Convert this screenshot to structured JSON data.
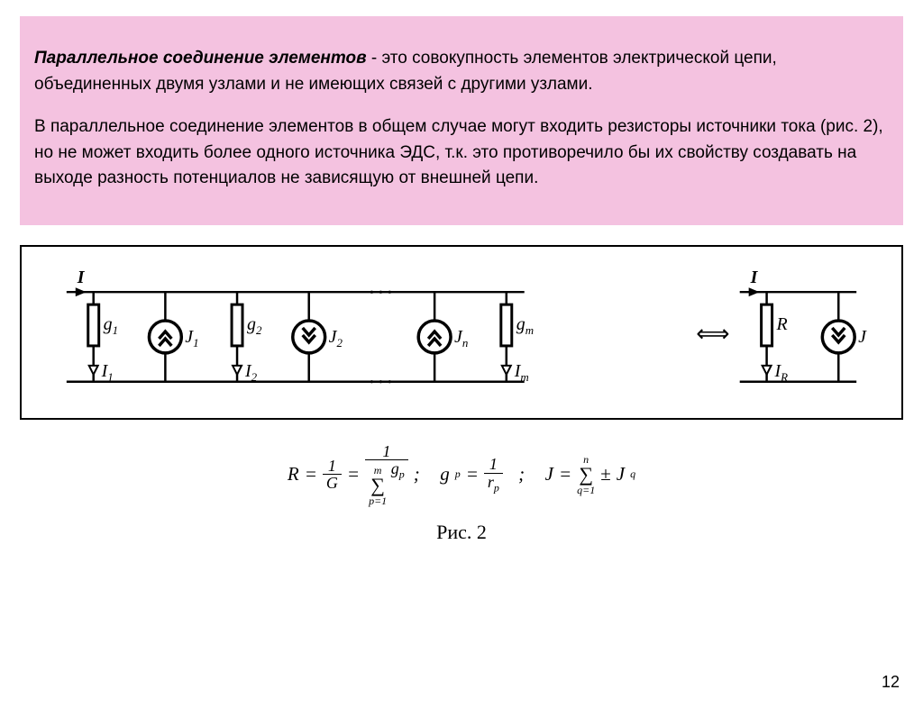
{
  "textBlock": {
    "para1_bold": "Параллельное соединение элементов",
    "para1_rest": " - это совокупность элементов электрической цепи, объединенных двумя узлами и не имеющих связей с другими узлами.",
    "para2": "В параллельное соединение элементов в общем случае могут входить резисторы источники тока (рис. 2), но не может входить более одного источника ЭДС, т.к. это противоречило бы их свойству создавать на выходе разность потенциалов не зависящую от внешней цепи."
  },
  "circuit": {
    "topLabel": "I",
    "topLabelRight": "I",
    "branches": [
      {
        "type": "resistor",
        "label": "g",
        "sub": "1",
        "ilabel": "I",
        "isub": "1"
      },
      {
        "type": "sourceUp",
        "label": "J",
        "sub": "1"
      },
      {
        "type": "resistor",
        "label": "g",
        "sub": "2",
        "ilabel": "I",
        "isub": "2"
      },
      {
        "type": "sourceDown",
        "label": "J",
        "sub": "2"
      },
      {
        "type": "gap"
      },
      {
        "type": "sourceUp",
        "label": "J",
        "sub": "n"
      },
      {
        "type": "resistor",
        "label": "g",
        "sub": "m",
        "ilabel": "I",
        "isub": "m"
      }
    ],
    "equivArrow": "⟺",
    "equiv": [
      {
        "type": "resistor",
        "label": "R",
        "sub": "",
        "ilabel": "I",
        "isub": "R"
      },
      {
        "type": "sourceDown",
        "label": "J",
        "sub": ""
      }
    ]
  },
  "formulas": {
    "R_eq": "R",
    "one": "1",
    "G": "G",
    "m": "m",
    "p1": "p=1",
    "gp": "g",
    "gp_sub": "p",
    "rp": "r",
    "rp_sub": "p",
    "J": "J",
    "n": "n",
    "q1": "q=1",
    "pm": "±",
    "Jq": "J",
    "Jq_sub": "q",
    "sep": ";"
  },
  "caption": "Рис. 2",
  "pageNumber": "12",
  "colors": {
    "pinkBg": "#f4c2e0",
    "black": "#000000",
    "white": "#ffffff"
  }
}
